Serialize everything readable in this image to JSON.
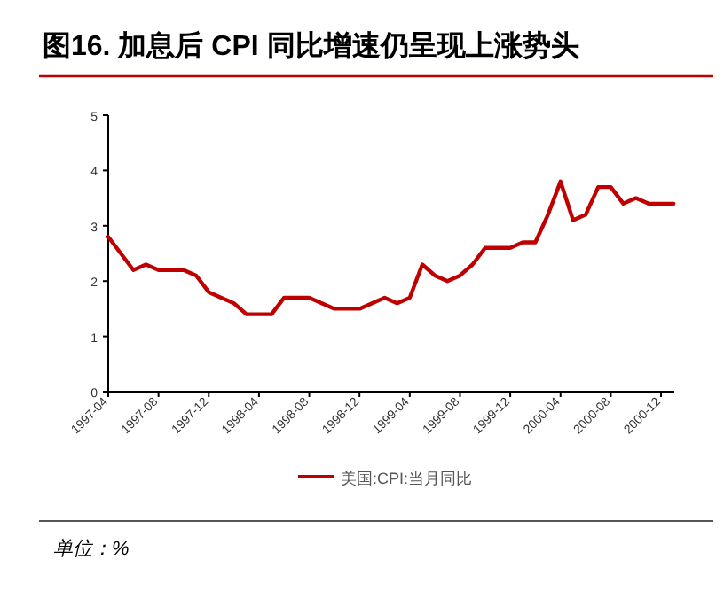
{
  "chart_data": {
    "type": "line",
    "title": "图16. 加息后 CPI 同比增速仍呈现上涨势头",
    "categories": [
      "1997-04",
      null,
      null,
      null,
      "1997-08",
      null,
      null,
      null,
      "1997-12",
      null,
      null,
      null,
      "1998-04",
      null,
      null,
      null,
      "1998-08",
      null,
      null,
      null,
      "1998-12",
      null,
      null,
      null,
      "1999-04",
      null,
      null,
      null,
      "1999-08",
      null,
      null,
      null,
      "1999-12",
      null,
      null,
      null,
      "2000-04",
      null,
      null,
      null,
      "2000-08",
      null,
      null,
      null,
      "2000-12",
      null
    ],
    "series": [
      {
        "name": "美国:CPI:当月同比",
        "color": "#c00000",
        "values": [
          2.8,
          2.5,
          2.2,
          2.3,
          2.2,
          2.2,
          2.2,
          2.1,
          1.8,
          1.7,
          1.6,
          1.4,
          1.4,
          1.4,
          1.7,
          1.7,
          1.7,
          1.6,
          1.5,
          1.5,
          1.5,
          1.6,
          1.7,
          1.6,
          1.7,
          2.3,
          2.1,
          2.0,
          2.1,
          2.3,
          2.6,
          2.6,
          2.6,
          2.7,
          2.7,
          3.2,
          3.8,
          3.1,
          3.2,
          3.7,
          3.7,
          3.4,
          3.5,
          3.4,
          3.4,
          3.4
        ]
      }
    ],
    "ylim": [
      0,
      5
    ],
    "yticks": [
      0,
      1,
      2,
      3,
      4,
      5
    ],
    "grid": false,
    "legend": "bottom",
    "marker": "none",
    "line_style": "solid",
    "annotations": [
      "单位：%"
    ]
  }
}
